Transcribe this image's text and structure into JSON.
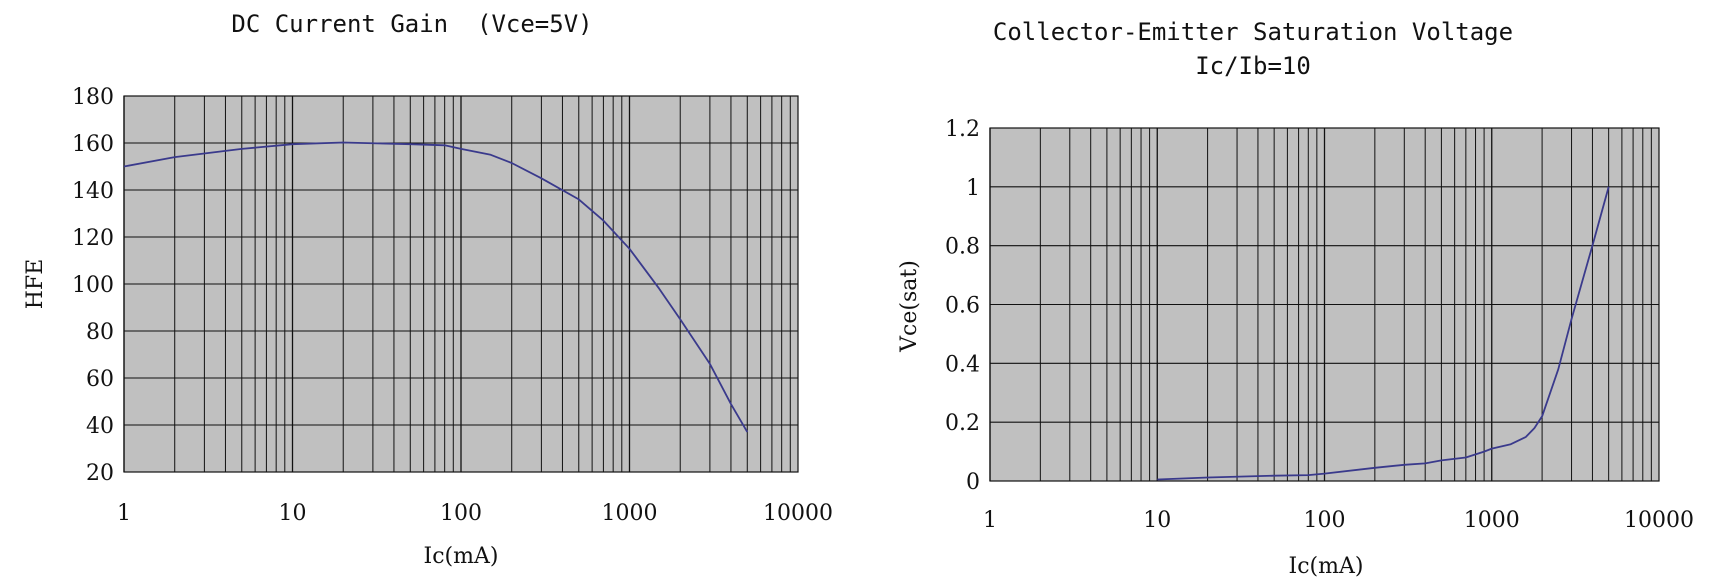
{
  "chart_data": [
    {
      "type": "line",
      "title": "DC Current Gain  (Vce=5V)",
      "xlabel": "Ic(mA)",
      "ylabel": "HFE",
      "xscale": "log",
      "xlim": [
        1,
        10000
      ],
      "ylim": [
        20,
        180
      ],
      "xticks": [
        "1",
        "10",
        "100",
        "1000",
        "10000"
      ],
      "yticks": [
        "20",
        "40",
        "60",
        "80",
        "100",
        "120",
        "140",
        "160",
        "180"
      ],
      "grid": true,
      "colors": {
        "plot_bg": "#c0c0c0",
        "grid": "#111111",
        "line": "#3a3a8c"
      },
      "series": [
        {
          "x": [
            1,
            2,
            5,
            10,
            20,
            50,
            80,
            100,
            150,
            200,
            300,
            500,
            700,
            1000,
            1500,
            2000,
            3000,
            4000,
            5000
          ],
          "y": [
            150,
            154,
            157.5,
            159.5,
            160.2,
            159.5,
            159,
            157.5,
            155,
            151.5,
            145,
            136,
            127,
            115,
            98,
            85,
            66,
            49,
            37
          ]
        }
      ]
    },
    {
      "type": "line",
      "title": "Collector-Emitter Saturation Voltage",
      "subtitle": "Ic/Ib=10",
      "xlabel": "Ic(mA)",
      "ylabel": "Vce(sat)",
      "xscale": "log",
      "xlim": [
        1,
        10000
      ],
      "ylim": [
        0,
        1.2
      ],
      "xticks": [
        "1",
        "10",
        "100",
        "1000",
        "10000"
      ],
      "yticks": [
        "0",
        "0.2",
        "0.4",
        "0.6",
        "0.8",
        "1",
        "1.2"
      ],
      "ytick_values": [
        0,
        0.2,
        0.4,
        0.6,
        0.8,
        1,
        1.2
      ],
      "grid": true,
      "colors": {
        "plot_bg": "#c0c0c0",
        "grid": "#111111",
        "line": "#3a3a8c"
      },
      "series": [
        {
          "x": [
            10,
            20,
            50,
            80,
            100,
            200,
            300,
            400,
            500,
            700,
            900,
            1000,
            1300,
            1600,
            1800,
            2000,
            2500,
            3000,
            4000,
            5000
          ],
          "y": [
            0.005,
            0.012,
            0.018,
            0.02,
            0.025,
            0.045,
            0.055,
            0.06,
            0.07,
            0.08,
            0.1,
            0.11,
            0.125,
            0.15,
            0.18,
            0.22,
            0.38,
            0.55,
            0.8,
            1.0
          ]
        }
      ]
    }
  ]
}
